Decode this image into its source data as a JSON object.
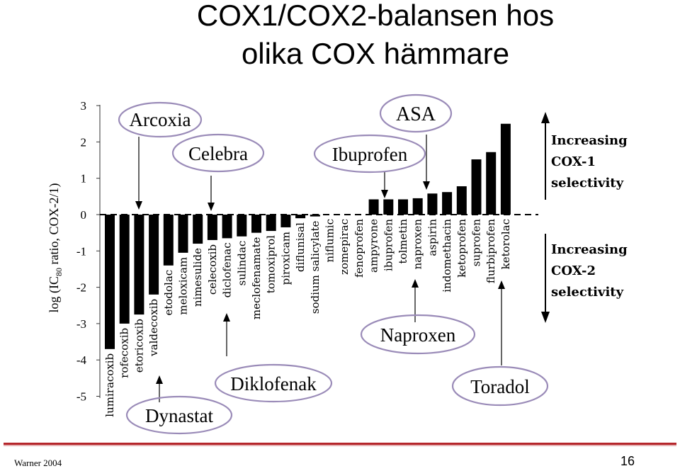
{
  "slide": {
    "title_line1": "COX1/COX2-balansen hos",
    "title_line2": "olika COX hämmare",
    "footer_left": "Warner 2004",
    "page_number": "16"
  },
  "chart_data": {
    "type": "bar",
    "ylabel_parts": [
      "log (IC",
      "80",
      " ratio, COX-2/1)"
    ],
    "ylim": [
      -5,
      3
    ],
    "yticks": [
      3,
      2,
      1,
      0,
      -1,
      -2,
      -3,
      -4,
      -5
    ],
    "categories": [
      "lumiracoxib",
      "rofecoxib",
      "etoricoxib",
      "valdecoxib",
      "etodolac",
      "meloxicam",
      "nimesulide",
      "celecoxib",
      "diclofenac",
      "sulindac",
      "meclofenamate",
      "tomoxiprol",
      "piroxicam",
      "diflunisal",
      "sodium salicylate",
      "niflumic",
      "zomepirac",
      "fenoprofen",
      "ampyrone",
      "ibuprofen",
      "tolmetin",
      "naproxen",
      "aspirin",
      "indomethacin",
      "ketoprofen",
      "suprofen",
      "flurbiprofen",
      "ketorolac"
    ],
    "values": [
      -3.7,
      -3.0,
      -2.75,
      -2.2,
      -1.4,
      -1.05,
      -0.8,
      -0.7,
      -0.65,
      -0.6,
      -0.5,
      -0.45,
      -0.35,
      -0.1,
      -0.05,
      0.0,
      0.0,
      0.0,
      0.42,
      0.42,
      0.42,
      0.45,
      0.58,
      0.62,
      0.78,
      1.52,
      1.72,
      2.5
    ],
    "bar_color": "#000000",
    "side_labels": {
      "top": [
        "Increasing",
        "COX-1",
        "selectivity"
      ],
      "bottom": [
        "Increasing",
        "COX-2",
        "selectivity"
      ]
    }
  },
  "callouts": [
    {
      "label": "Arcoxia",
      "target": "etoricoxib"
    },
    {
      "label": "Celebra",
      "target": "celecoxib"
    },
    {
      "label": "ASA",
      "target": "aspirin"
    },
    {
      "label": "Ibuprofen",
      "target": "ibuprofen"
    },
    {
      "label": "Dynastat",
      "target": "valdecoxib"
    },
    {
      "label": "Diklofenak",
      "target": "diclofenac"
    },
    {
      "label": "Naproxen",
      "target": "naproxen"
    },
    {
      "label": "Toradol",
      "target": "ketorolac"
    }
  ]
}
